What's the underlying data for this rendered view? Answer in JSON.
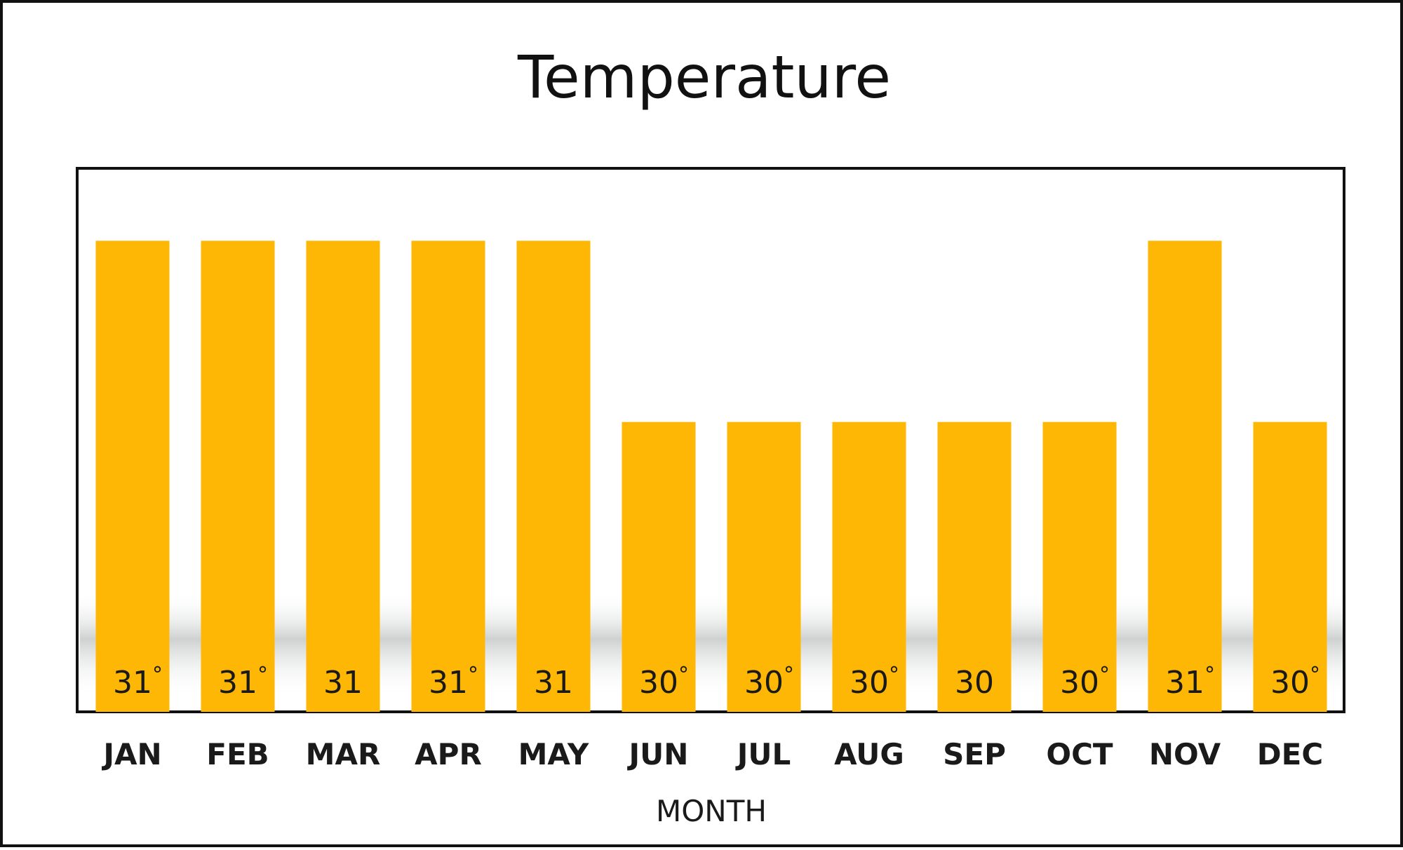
{
  "chart_data": {
    "type": "bar",
    "title": "Temperature",
    "xlabel": "MONTH",
    "ylabel": "",
    "categories": [
      "JAN",
      "FEB",
      "MAR",
      "APR",
      "MAY",
      "JUN",
      "JUL",
      "AUG",
      "SEP",
      "OCT",
      "NOV",
      "DEC"
    ],
    "values": [
      31,
      31,
      31,
      31,
      31,
      30,
      30,
      30,
      30,
      30,
      31,
      30
    ],
    "data_labels": [
      "31",
      "31",
      "31",
      "31",
      "31",
      "30",
      "30",
      "30",
      "30",
      "30",
      "31",
      "30"
    ],
    "degree_marks": [
      true,
      true,
      false,
      true,
      false,
      true,
      true,
      true,
      false,
      true,
      true,
      true
    ],
    "degree_symbol": "°",
    "ylim": [
      28.4,
      31.4
    ],
    "bar_color": "#FDB704",
    "grid": false,
    "legend": "none"
  }
}
